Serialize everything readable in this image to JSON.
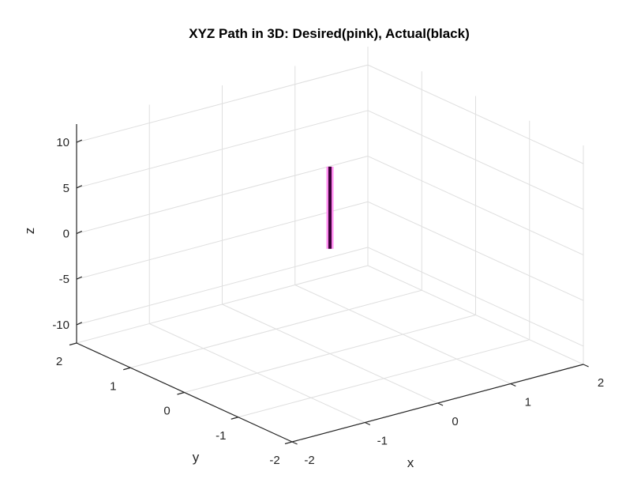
{
  "chart_data": {
    "type": "line",
    "title": "XYZ Path in 3D: Desired(pink), Actual(black)",
    "xlabel": "x",
    "ylabel": "y",
    "zlabel": "z",
    "xlim": [
      -2,
      2
    ],
    "ylim": [
      -2,
      2
    ],
    "zlim": [
      -12,
      12
    ],
    "xticks": [
      -2,
      -1,
      0,
      1,
      2
    ],
    "yticks": [
      -2,
      -1,
      0,
      1,
      2
    ],
    "zticks": [
      -10,
      -5,
      0,
      5,
      10
    ],
    "xtick_labels": [
      "-2",
      "-1",
      "0",
      "1",
      "2"
    ],
    "ytick_labels": [
      "-2",
      "-1",
      "0",
      "1",
      "2"
    ],
    "ztick_labels": [
      "-10",
      "-5",
      "0",
      "5",
      "10"
    ],
    "grid": true,
    "series": [
      {
        "color": "#ff8cf0",
        "x": [
          0,
          0
        ],
        "y": [
          0,
          0
        ],
        "z": [
          -0.5,
          8.5
        ]
      },
      {
        "color": "#3d0038",
        "x": [
          0,
          0
        ],
        "y": [
          0,
          0
        ],
        "z": [
          -0.5,
          8.5
        ]
      }
    ]
  }
}
